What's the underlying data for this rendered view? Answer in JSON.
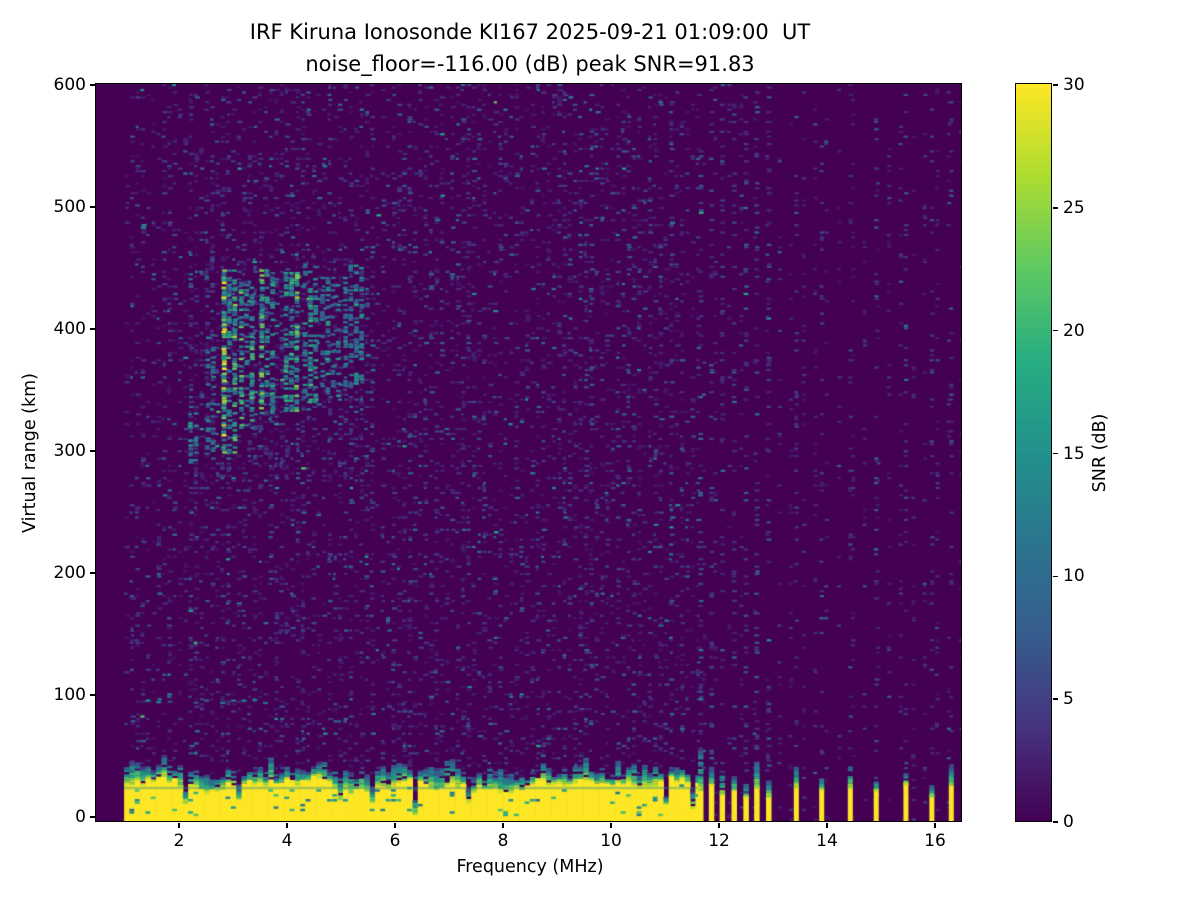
{
  "figure": {
    "title_line1": "IRF Kiruna Ionosonde KI167 2025-09-21 01:09:00  UT",
    "title_line2": "noise_floor=-116.00 (dB) peak SNR=91.83"
  },
  "chart_data": {
    "type": "heatmap",
    "title": "IRF Kiruna Ionosonde KI167 2025-09-21 01:09:00  UT",
    "subtitle": "noise_floor=-116.00 (dB) peak SNR=91.83",
    "station": "IRF Kiruna Ionosonde KI167",
    "timestamp_ut": "2025-09-21 01:09:00",
    "noise_floor_db": -116.0,
    "peak_snr_db": 91.83,
    "xlabel": "Frequency (MHz)",
    "ylabel": "Virtual range (km)",
    "xlim": [
      0.48,
      16.5
    ],
    "ylim": [
      -4,
      600
    ],
    "x_ticks": [
      2,
      4,
      6,
      8,
      10,
      12,
      14,
      16
    ],
    "y_ticks": [
      0,
      100,
      200,
      300,
      400,
      500,
      600
    ],
    "grid": false,
    "colormap": "viridis",
    "colormap_stops": [
      "#440154",
      "#46327e",
      "#365c8d",
      "#2b748e",
      "#21918c",
      "#27ad81",
      "#5ec962",
      "#addc30",
      "#fde725"
    ],
    "colorbar": {
      "label": "SNR (dB)",
      "min": 0,
      "max": 30,
      "ticks": [
        0,
        5,
        10,
        15,
        20,
        25,
        30
      ]
    },
    "features": {
      "data_start_freq_mhz": 1.0,
      "background_noise": {
        "freq_range": [
          1.0,
          11.65
        ],
        "snr_range_db": [
          0,
          12
        ],
        "texture": "speckled horizontal dashes"
      },
      "ground_clutter_band": {
        "freq_range": [
          1.0,
          11.62
        ],
        "top_km_mean": 27,
        "top_km_jitter": 9,
        "snr_db": 30,
        "notches": [
          {
            "f": 2.06,
            "hw": 0.04,
            "top": 12
          },
          {
            "f": 3.1,
            "hw": 0.04,
            "top": 14
          },
          {
            "f": 4.98,
            "hw": 0.03,
            "top": 15
          },
          {
            "f": 5.52,
            "hw": 0.04,
            "top": 12
          },
          {
            "f": 6.32,
            "hw": 0.07,
            "top": 3
          },
          {
            "f": 6.5,
            "hw": 0.03,
            "top": 10
          },
          {
            "f": 7.35,
            "hw": 0.04,
            "top": 12
          },
          {
            "f": 8.25,
            "hw": 0.03,
            "top": 15
          },
          {
            "f": 9.05,
            "hw": 0.04,
            "top": 12
          },
          {
            "f": 9.55,
            "hw": 0.03,
            "top": 14
          },
          {
            "f": 10.05,
            "hw": 0.04,
            "top": 13
          },
          {
            "f": 10.95,
            "hw": 0.05,
            "top": 10
          },
          {
            "f": 11.45,
            "hw": 0.04,
            "top": 8
          }
        ]
      },
      "echo_traces": [
        {
          "f": [
            2.18,
            2.42
          ],
          "km": [
            288,
            335
          ],
          "strength": 0.45
        },
        {
          "f": [
            2.5,
            2.72
          ],
          "km": [
            300,
            395
          ],
          "strength": 0.5
        },
        {
          "f": [
            2.8,
            3.05
          ],
          "km": [
            298,
            448
          ],
          "strength": 1.0
        },
        {
          "f": [
            3.12,
            3.38
          ],
          "km": [
            318,
            438
          ],
          "strength": 0.75
        },
        {
          "f": [
            3.5,
            3.76
          ],
          "km": [
            330,
            448
          ],
          "strength": 0.85
        },
        {
          "f": [
            3.95,
            4.2
          ],
          "km": [
            332,
            446
          ],
          "strength": 0.8
        },
        {
          "f": [
            4.3,
            4.56
          ],
          "km": [
            340,
            455
          ],
          "strength": 0.75
        },
        {
          "f": [
            4.62,
            5.02
          ],
          "km": [
            345,
            442
          ],
          "strength": 0.55
        },
        {
          "f": [
            5.05,
            5.45
          ],
          "km": [
            352,
            452
          ],
          "strength": 0.5
        }
      ],
      "sporadic_line": {
        "km": 95,
        "freq_range": [
          1.3,
          3.6
        ]
      },
      "interference_channels": [
        {
          "freq": 11.68,
          "dense": true
        },
        {
          "freq": 11.88,
          "dense": true
        },
        {
          "freq": 12.08,
          "dense": true
        },
        {
          "freq": 12.3,
          "dense": true
        },
        {
          "freq": 12.52,
          "dense": true
        },
        {
          "freq": 12.72,
          "dense": true
        },
        {
          "freq": 12.94,
          "dense": true
        },
        {
          "freq": 13.45,
          "dense": false
        },
        {
          "freq": 13.92,
          "dense": false
        },
        {
          "freq": 14.45,
          "dense": false
        },
        {
          "freq": 14.93,
          "dense": false
        },
        {
          "freq": 15.48,
          "dense": false
        },
        {
          "freq": 15.96,
          "dense": false
        },
        {
          "freq": 16.32,
          "dense": false
        }
      ]
    }
  }
}
